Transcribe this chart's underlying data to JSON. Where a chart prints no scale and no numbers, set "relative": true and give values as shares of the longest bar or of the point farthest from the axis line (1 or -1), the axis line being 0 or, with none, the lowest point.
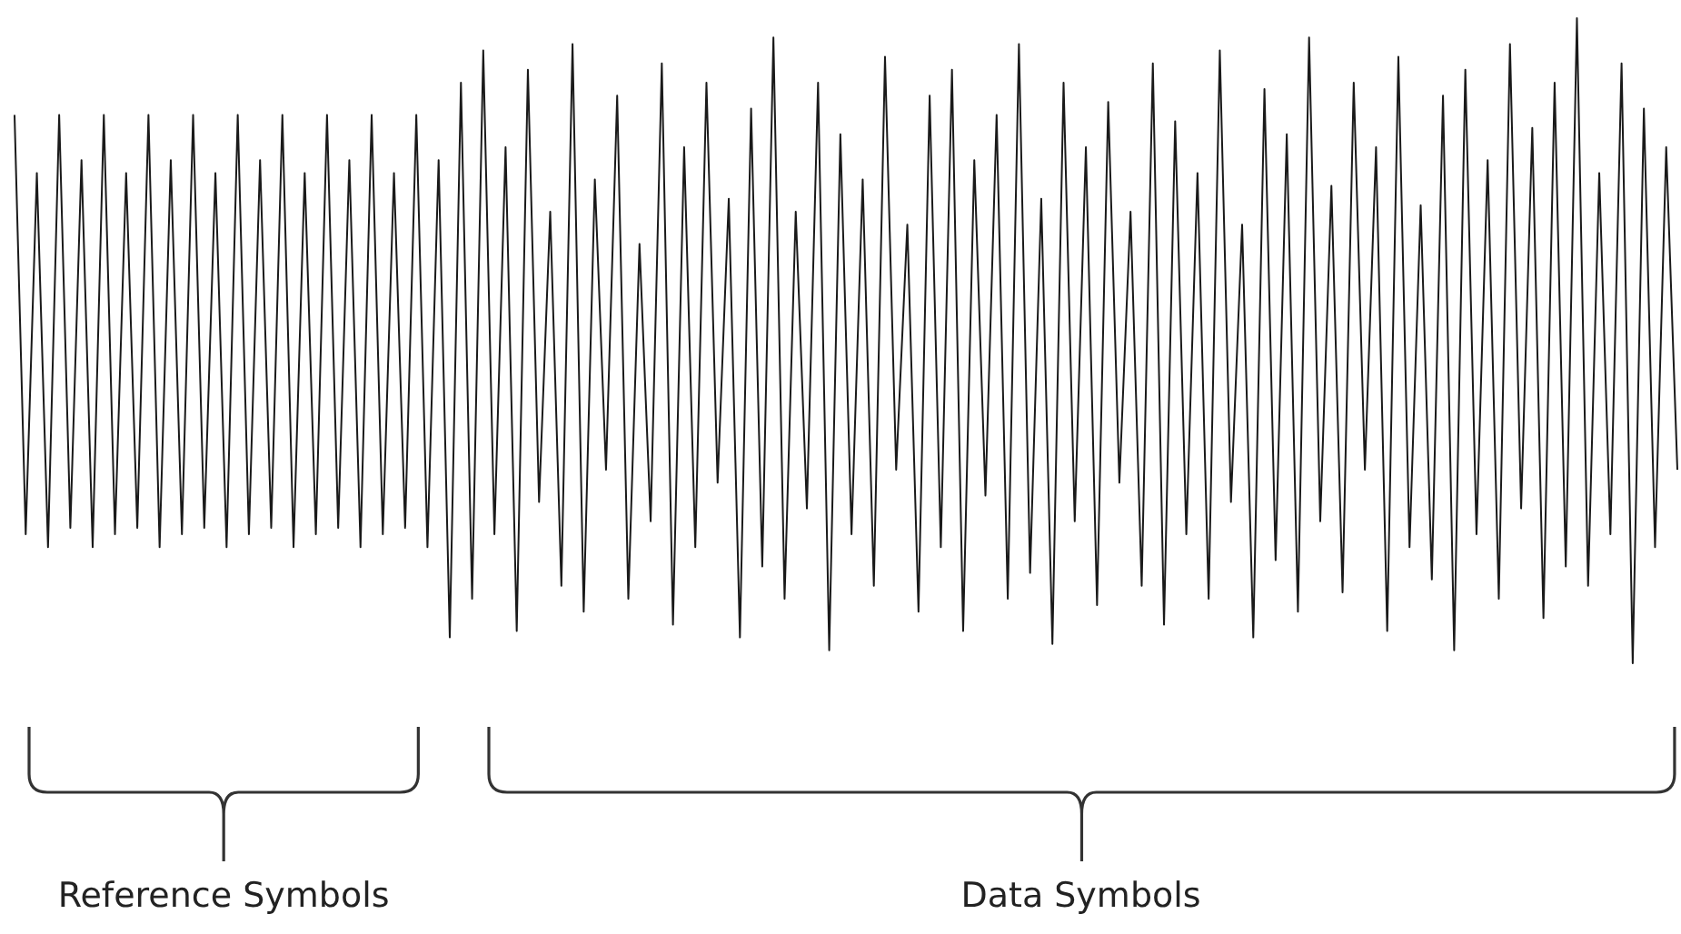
{
  "chart_data": {
    "type": "line",
    "relative": true,
    "annotations": [
      "Reference Symbols",
      "Data Symbols"
    ],
    "categories": [
      null,
      null,
      null,
      null,
      null,
      null,
      null,
      null,
      null,
      null,
      null,
      null,
      null,
      null,
      null,
      null,
      null,
      null,
      null,
      null,
      null,
      null,
      null,
      null,
      null,
      null,
      null,
      null,
      null,
      null,
      null,
      null,
      null,
      null,
      null,
      null,
      null,
      null,
      null,
      null,
      null,
      null,
      null,
      null,
      null,
      null,
      null,
      null,
      null,
      null,
      null,
      null,
      null,
      null,
      null,
      null,
      null,
      null,
      null,
      null,
      null,
      null,
      null,
      null,
      null,
      null,
      null,
      null,
      null,
      null,
      null,
      null,
      null,
      null,
      null,
      null,
      null,
      null,
      null,
      null,
      null,
      null,
      null,
      null,
      null,
      null,
      null,
      null,
      null,
      null,
      null,
      null,
      null,
      null,
      null,
      null,
      null,
      null,
      null,
      null,
      null,
      null,
      null,
      null,
      null,
      null,
      null,
      null,
      null,
      null,
      null,
      null,
      null,
      null,
      null,
      null,
      null,
      null,
      null,
      null,
      null,
      null,
      null,
      null,
      null,
      null,
      null,
      null,
      null,
      null,
      null,
      null,
      null,
      null,
      null,
      null,
      null,
      null,
      null,
      null,
      null,
      null,
      null,
      null,
      null,
      null,
      null,
      null,
      null,
      null
    ],
    "series": [
      {
        "color": "#1a1a1a",
        "values": [
          0.85,
          0.2,
          0.76,
          0.18,
          0.85,
          0.21,
          0.78,
          0.18,
          0.85,
          0.2,
          0.76,
          0.21,
          0.85,
          0.18,
          0.78,
          0.2,
          0.85,
          0.21,
          0.76,
          0.18,
          0.85,
          0.2,
          0.78,
          0.21,
          0.85,
          0.18,
          0.76,
          0.2,
          0.85,
          0.21,
          0.78,
          0.18,
          0.85,
          0.2,
          0.76,
          0.21,
          0.85,
          0.18,
          0.78,
          0.04,
          0.9,
          0.1,
          0.95,
          0.2,
          0.8,
          0.05,
          0.92,
          0.25,
          0.7,
          0.12,
          0.96,
          0.08,
          0.75,
          0.3,
          0.88,
          0.1,
          0.65,
          0.22,
          0.93,
          0.06,
          0.8,
          0.18,
          0.9,
          0.28,
          0.72,
          0.04,
          0.86,
          0.15,
          0.97,
          0.1,
          0.7,
          0.24,
          0.9,
          0.02,
          0.82,
          0.2,
          0.75,
          0.12,
          0.94,
          0.3,
          0.68,
          0.08,
          0.88,
          0.18,
          0.92,
          0.05,
          0.78,
          0.26,
          0.85,
          0.1,
          0.96,
          0.14,
          0.72,
          0.03,
          0.9,
          0.22,
          0.8,
          0.09,
          0.87,
          0.28,
          0.7,
          0.12,
          0.93,
          0.06,
          0.84,
          0.2,
          0.76,
          0.1,
          0.95,
          0.25,
          0.68,
          0.04,
          0.89,
          0.16,
          0.82,
          0.08,
          0.97,
          0.22,
          0.74,
          0.11,
          0.9,
          0.3,
          0.8,
          0.05,
          0.94,
          0.18,
          0.71,
          0.13,
          0.88,
          0.02,
          0.92,
          0.2,
          0.78,
          0.1,
          0.96,
          0.24,
          0.83,
          0.07,
          0.9,
          0.15,
          1.0,
          0.12,
          0.76,
          0.2,
          0.93,
          0.0,
          0.86,
          0.18,
          0.8,
          0.3
        ]
      }
    ]
  }
}
